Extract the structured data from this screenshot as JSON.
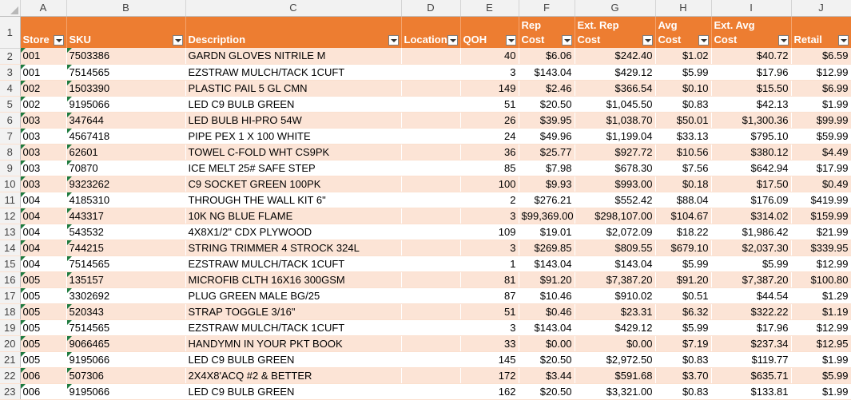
{
  "columns": [
    "A",
    "B",
    "C",
    "D",
    "E",
    "F",
    "G",
    "H",
    "I",
    "J"
  ],
  "header_row_number": "1",
  "headers": [
    "Store",
    "SKU",
    "Description",
    "Location",
    "QOH",
    "Rep Cost",
    "Ext. Rep Cost",
    "Avg Cost",
    "Ext. Avg Cost",
    "Retail"
  ],
  "rows": [
    {
      "n": "2",
      "store": "001",
      "sku": "7503386",
      "desc": "GARDN GLOVES NITRILE M",
      "loc": "",
      "qoh": "40",
      "rep": "$6.06",
      "extrep": "$242.40",
      "avg": "$1.02",
      "extavg": "$40.72",
      "retail": "$6.59"
    },
    {
      "n": "3",
      "store": "001",
      "sku": "7514565",
      "desc": "EZSTRAW MULCH/TACK 1CUFT",
      "loc": "",
      "qoh": "3",
      "rep": "$143.04",
      "extrep": "$429.12",
      "avg": "$5.99",
      "extavg": "$17.96",
      "retail": "$12.99"
    },
    {
      "n": "4",
      "store": "002",
      "sku": "1503390",
      "desc": "PLASTIC PAIL 5 GL CMN",
      "loc": "",
      "qoh": "149",
      "rep": "$2.46",
      "extrep": "$366.54",
      "avg": "$0.10",
      "extavg": "$15.50",
      "retail": "$6.99"
    },
    {
      "n": "5",
      "store": "002",
      "sku": "9195066",
      "desc": "LED C9 BULB GREEN",
      "loc": "",
      "qoh": "51",
      "rep": "$20.50",
      "extrep": "$1,045.50",
      "avg": "$0.83",
      "extavg": "$42.13",
      "retail": "$1.99"
    },
    {
      "n": "6",
      "store": "003",
      "sku": "347644",
      "desc": "LED BULB HI-PRO 54W",
      "loc": "",
      "qoh": "26",
      "rep": "$39.95",
      "extrep": "$1,038.70",
      "avg": "$50.01",
      "extavg": "$1,300.36",
      "retail": "$99.99"
    },
    {
      "n": "7",
      "store": "003",
      "sku": "4567418",
      "desc": "PIPE PEX 1 X 100 WHITE",
      "loc": "",
      "qoh": "24",
      "rep": "$49.96",
      "extrep": "$1,199.04",
      "avg": "$33.13",
      "extavg": "$795.10",
      "retail": "$59.99"
    },
    {
      "n": "8",
      "store": "003",
      "sku": "62601",
      "desc": "TOWEL C-FOLD WHT CS9PK",
      "loc": "",
      "qoh": "36",
      "rep": "$25.77",
      "extrep": "$927.72",
      "avg": "$10.56",
      "extavg": "$380.12",
      "retail": "$4.49"
    },
    {
      "n": "9",
      "store": "003",
      "sku": "70870",
      "desc": "ICE MELT 25# SAFE STEP",
      "loc": "",
      "qoh": "85",
      "rep": "$7.98",
      "extrep": "$678.30",
      "avg": "$7.56",
      "extavg": "$642.94",
      "retail": "$17.99"
    },
    {
      "n": "10",
      "store": "003",
      "sku": "9323262",
      "desc": "C9 SOCKET GREEN 100PK",
      "loc": "",
      "qoh": "100",
      "rep": "$9.93",
      "extrep": "$993.00",
      "avg": "$0.18",
      "extavg": "$17.50",
      "retail": "$0.49"
    },
    {
      "n": "11",
      "store": "004",
      "sku": "4185310",
      "desc": "THROUGH THE WALL KIT 6\"",
      "loc": "",
      "qoh": "2",
      "rep": "$276.21",
      "extrep": "$552.42",
      "avg": "$88.04",
      "extavg": "$176.09",
      "retail": "$419.99"
    },
    {
      "n": "12",
      "store": "004",
      "sku": "443317",
      "desc": "10K NG BLUE FLAME",
      "loc": "",
      "qoh": "3",
      "rep": "$99,369.00",
      "extrep": "$298,107.00",
      "avg": "$104.67",
      "extavg": "$314.02",
      "retail": "$159.99"
    },
    {
      "n": "13",
      "store": "004",
      "sku": "543532",
      "desc": "4X8X1/2\" CDX PLYWOOD",
      "loc": "",
      "qoh": "109",
      "rep": "$19.01",
      "extrep": "$2,072.09",
      "avg": "$18.22",
      "extavg": "$1,986.42",
      "retail": "$21.99"
    },
    {
      "n": "14",
      "store": "004",
      "sku": "744215",
      "desc": "STRING TRIMMER 4 STROCK 324L",
      "loc": "",
      "qoh": "3",
      "rep": "$269.85",
      "extrep": "$809.55",
      "avg": "$679.10",
      "extavg": "$2,037.30",
      "retail": "$339.95"
    },
    {
      "n": "15",
      "store": "004",
      "sku": "7514565",
      "desc": "EZSTRAW MULCH/TACK 1CUFT",
      "loc": "",
      "qoh": "1",
      "rep": "$143.04",
      "extrep": "$143.04",
      "avg": "$5.99",
      "extavg": "$5.99",
      "retail": "$12.99"
    },
    {
      "n": "16",
      "store": "005",
      "sku": "135157",
      "desc": "MICROFIB CLTH 16X16 300GSM",
      "loc": "",
      "qoh": "81",
      "rep": "$91.20",
      "extrep": "$7,387.20",
      "avg": "$91.20",
      "extavg": "$7,387.20",
      "retail": "$100.80"
    },
    {
      "n": "17",
      "store": "005",
      "sku": "3302692",
      "desc": "PLUG GREEN MALE BG/25",
      "loc": "",
      "qoh": "87",
      "rep": "$10.46",
      "extrep": "$910.02",
      "avg": "$0.51",
      "extavg": "$44.54",
      "retail": "$1.29"
    },
    {
      "n": "18",
      "store": "005",
      "sku": "520343",
      "desc": "STRAP TOGGLE 3/16\"",
      "loc": "",
      "qoh": "51",
      "rep": "$0.46",
      "extrep": "$23.31",
      "avg": "$6.32",
      "extavg": "$322.22",
      "retail": "$1.19"
    },
    {
      "n": "19",
      "store": "005",
      "sku": "7514565",
      "desc": "EZSTRAW MULCH/TACK 1CUFT",
      "loc": "",
      "qoh": "3",
      "rep": "$143.04",
      "extrep": "$429.12",
      "avg": "$5.99",
      "extavg": "$17.96",
      "retail": "$12.99"
    },
    {
      "n": "20",
      "store": "005",
      "sku": "9066465",
      "desc": "HANDYMN IN YOUR PKT BOOK",
      "loc": "",
      "qoh": "33",
      "rep": "$0.00",
      "extrep": "$0.00",
      "avg": "$7.19",
      "extavg": "$237.34",
      "retail": "$12.95"
    },
    {
      "n": "21",
      "store": "005",
      "sku": "9195066",
      "desc": "LED C9 BULB GREEN",
      "loc": "",
      "qoh": "145",
      "rep": "$20.50",
      "extrep": "$2,972.50",
      "avg": "$0.83",
      "extavg": "$119.77",
      "retail": "$1.99"
    },
    {
      "n": "22",
      "store": "006",
      "sku": "507306",
      "desc": "2X4X8'ACQ #2 & BETTER",
      "loc": "",
      "qoh": "172",
      "rep": "$3.44",
      "extrep": "$591.68",
      "avg": "$3.70",
      "extavg": "$635.71",
      "retail": "$5.99"
    },
    {
      "n": "23",
      "store": "006",
      "sku": "9195066",
      "desc": "LED C9 BULB GREEN",
      "loc": "",
      "qoh": "162",
      "rep": "$20.50",
      "extrep": "$3,321.00",
      "avg": "$0.83",
      "extavg": "$133.81",
      "retail": "$1.99"
    }
  ],
  "colors": {
    "header_fill": "#ed7d31",
    "band_fill": "#fce4d6",
    "header_text": "#ffffff",
    "error_indicator": "#1e7b3f"
  }
}
